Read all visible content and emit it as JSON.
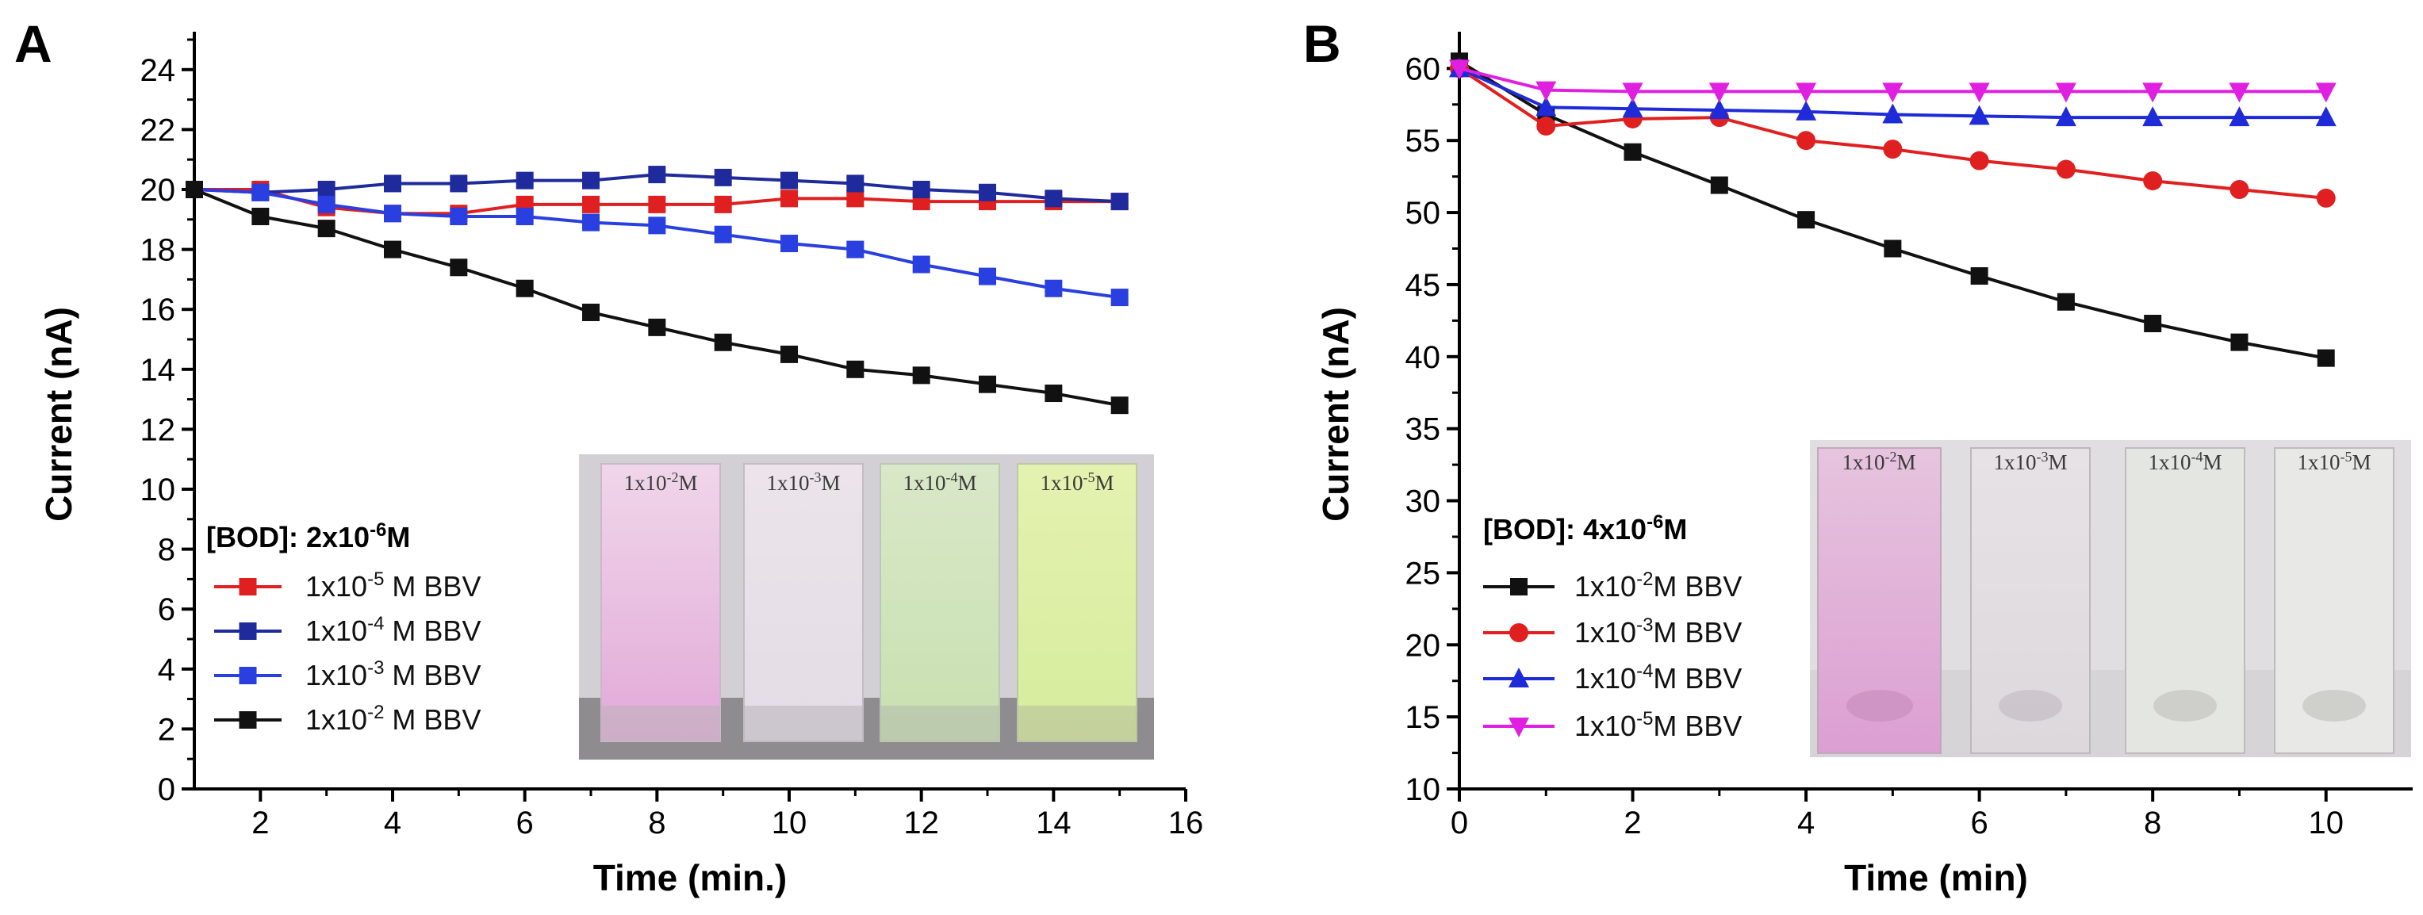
{
  "chart_data": [
    {
      "panel_label": "A",
      "type": "line",
      "xlabel": "Time (min.)",
      "ylabel": "Current (nA)",
      "xlim": [
        1,
        16
      ],
      "ylim": [
        0,
        25
      ],
      "xticks": [
        2,
        4,
        6,
        8,
        10,
        12,
        14,
        16
      ],
      "yticks": [
        0,
        2,
        4,
        6,
        8,
        10,
        12,
        14,
        16,
        18,
        20,
        22,
        24
      ],
      "x": [
        1,
        2,
        3,
        4,
        5,
        6,
        7,
        8,
        9,
        10,
        11,
        12,
        13,
        14,
        15
      ],
      "legend_title": {
        "text": "[BOD]: 2x10",
        "sup": "-6",
        "tail": "M"
      },
      "legend_position": "lower-left",
      "series": [
        {
          "name": "1x10-5 M BBV",
          "label_pre": "1x10",
          "label_sup": "-5",
          "label_post": " M BBV",
          "color": "#e02020",
          "marker": "square",
          "values": [
            20.0,
            20.0,
            19.4,
            19.2,
            19.2,
            19.5,
            19.5,
            19.5,
            19.5,
            19.7,
            19.7,
            19.6,
            19.6,
            19.6,
            19.6
          ]
        },
        {
          "name": "1x10-4 M BBV",
          "label_pre": "1x10",
          "label_sup": "-4",
          "label_post": " M BBV",
          "color": "#1f2a9c",
          "marker": "square",
          "values": [
            20.0,
            19.9,
            20.0,
            20.2,
            20.2,
            20.3,
            20.3,
            20.5,
            20.4,
            20.3,
            20.2,
            20.0,
            19.9,
            19.7,
            19.6
          ]
        },
        {
          "name": "1x10-3 M BBV",
          "label_pre": "1x10",
          "label_sup": "-3",
          "label_post": " M BBV",
          "color": "#2a3fe0",
          "marker": "square",
          "values": [
            20.0,
            19.9,
            19.5,
            19.2,
            19.1,
            19.1,
            18.9,
            18.8,
            18.5,
            18.2,
            18.0,
            17.5,
            17.1,
            16.7,
            16.4
          ]
        },
        {
          "name": "1x10-2 M BBV",
          "label_pre": "1x10",
          "label_sup": "-2",
          "label_post": " M BBV",
          "color": "#111111",
          "marker": "square",
          "values": [
            20.0,
            19.1,
            18.7,
            18.0,
            17.4,
            16.7,
            15.9,
            15.4,
            14.9,
            14.5,
            14.0,
            13.8,
            13.5,
            13.2,
            12.8
          ]
        }
      ],
      "inset_labels": [
        {
          "pre": "1x10",
          "sup": "-2",
          "post": "M"
        },
        {
          "pre": "1x10",
          "sup": "-3",
          "post": "M"
        },
        {
          "pre": "1x10",
          "sup": "-4",
          "post": "M"
        },
        {
          "pre": "1x10",
          "sup": "-5",
          "post": "M"
        }
      ]
    },
    {
      "panel_label": "B",
      "type": "line",
      "xlabel": "Time (min)",
      "ylabel": "Current (nA)",
      "xlim": [
        0,
        11
      ],
      "ylim": [
        10,
        62
      ],
      "xticks": [
        0,
        2,
        4,
        6,
        8,
        10
      ],
      "yticks": [
        10,
        15,
        20,
        25,
        30,
        35,
        40,
        45,
        50,
        55,
        60
      ],
      "x": [
        0,
        1,
        2,
        3,
        4,
        5,
        6,
        7,
        8,
        9,
        10
      ],
      "legend_title": {
        "text": "[BOD]: 4x10",
        "sup": "-6",
        "tail": "M"
      },
      "legend_position": "lower-left",
      "series": [
        {
          "name": "1x10-2M BBV",
          "label_pre": "1x10",
          "label_sup": "-2",
          "label_post": "M BBV",
          "color": "#111111",
          "marker": "square",
          "values": [
            60.5,
            56.8,
            54.2,
            51.9,
            49.5,
            47.5,
            45.6,
            43.8,
            42.3,
            41.0,
            39.9
          ]
        },
        {
          "name": "1x10-3M BBV",
          "label_pre": "1x10",
          "label_sup": "-3",
          "label_post": "M BBV",
          "color": "#e02020",
          "marker": "circle",
          "values": [
            60.0,
            56.0,
            56.5,
            56.6,
            55.0,
            54.4,
            53.6,
            53.0,
            52.2,
            51.6,
            51.0
          ]
        },
        {
          "name": "1x10-4M BBV",
          "label_pre": "1x10",
          "label_sup": "-4",
          "label_post": "M BBV",
          "color": "#1f2ad8",
          "marker": "triangle-up",
          "values": [
            60.0,
            57.3,
            57.2,
            57.1,
            57.0,
            56.8,
            56.7,
            56.6,
            56.6,
            56.6,
            56.6
          ]
        },
        {
          "name": "1x10-5M BBV",
          "label_pre": "1x10",
          "label_sup": "-5",
          "label_post": "M BBV",
          "color": "#e020e0",
          "marker": "triangle-down",
          "values": [
            60.0,
            58.5,
            58.4,
            58.4,
            58.4,
            58.4,
            58.4,
            58.4,
            58.4,
            58.4,
            58.4
          ]
        }
      ],
      "inset_labels": [
        {
          "pre": "1x10",
          "sup": "-2",
          "post": "M"
        },
        {
          "pre": "1x10",
          "sup": "-3",
          "post": "M"
        },
        {
          "pre": "1x10",
          "sup": "-4",
          "post": "M"
        },
        {
          "pre": "1x10",
          "sup": "-5",
          "post": "M"
        }
      ]
    }
  ]
}
